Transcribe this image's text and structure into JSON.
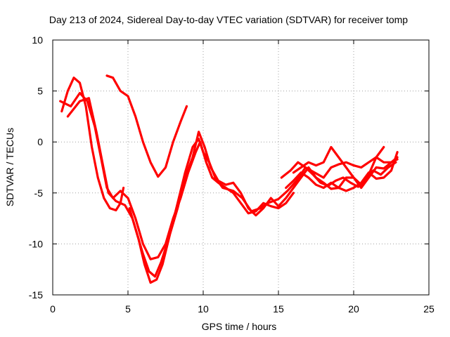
{
  "chart_data": {
    "type": "line",
    "title": "Day 213 of 2024, Sidereal Day-to-day VTEC variation (SDTVAR) for receiver tomp",
    "xlabel": "GPS time / hours",
    "ylabel": "SDTVAR / TECUs",
    "xlim": [
      0,
      25
    ],
    "ylim": [
      -15,
      10
    ],
    "xticks": [
      {
        "value": 0,
        "label": "0"
      },
      {
        "value": 5,
        "label": "5"
      },
      {
        "value": 10,
        "label": "10"
      },
      {
        "value": 15,
        "label": "15"
      },
      {
        "value": 20,
        "label": "20"
      },
      {
        "value": 25,
        "label": "25"
      }
    ],
    "yticks": [
      {
        "value": 10,
        "label": "10"
      },
      {
        "value": 5,
        "label": "5"
      },
      {
        "value": 0,
        "label": "0"
      },
      {
        "value": -5,
        "label": "-5"
      },
      {
        "value": -10,
        "label": "-10"
      },
      {
        "value": -15,
        "label": "-15"
      }
    ],
    "grid": true,
    "legend": "none",
    "color": "#ff0000",
    "series": [
      {
        "points": [
          [
            0.6,
            3.0
          ],
          [
            1.0,
            5.0
          ],
          [
            1.4,
            6.3
          ],
          [
            1.8,
            5.8
          ],
          [
            2.2,
            3.5
          ],
          [
            2.6,
            -0.5
          ],
          [
            3.0,
            -3.5
          ],
          [
            3.4,
            -5.5
          ],
          [
            3.8,
            -6.5
          ],
          [
            4.2,
            -6.7
          ],
          [
            4.5,
            -6.0
          ],
          [
            4.7,
            -4.5
          ]
        ]
      },
      {
        "points": [
          [
            3.6,
            6.5
          ],
          [
            4.0,
            6.3
          ],
          [
            4.5,
            5.0
          ],
          [
            5.0,
            4.5
          ],
          [
            5.5,
            2.5
          ],
          [
            6.0,
            0.0
          ],
          [
            6.5,
            -2.0
          ],
          [
            7.0,
            -3.4
          ],
          [
            7.5,
            -2.5
          ],
          [
            8.0,
            0.0
          ],
          [
            8.5,
            2.0
          ],
          [
            8.9,
            3.5
          ]
        ]
      },
      {
        "points": [
          [
            0.5,
            4.0
          ],
          [
            1.2,
            3.5
          ],
          [
            1.8,
            4.8
          ],
          [
            2.3,
            4.0
          ],
          [
            2.8,
            1.5
          ],
          [
            3.2,
            -1.5
          ],
          [
            3.6,
            -4.5
          ],
          [
            4.0,
            -5.5
          ],
          [
            4.5,
            -4.8
          ],
          [
            5.0,
            -5.5
          ],
          [
            5.5,
            -7.5
          ],
          [
            6.0,
            -10.0
          ],
          [
            6.5,
            -11.5
          ],
          [
            7.0,
            -11.3
          ],
          [
            7.5,
            -10.0
          ],
          [
            8.0,
            -7.5
          ],
          [
            8.5,
            -5.5
          ],
          [
            9.0,
            -3.0
          ],
          [
            9.5,
            -1.0
          ],
          [
            9.8,
            0.0
          ],
          [
            10.2,
            -2.0
          ],
          [
            10.6,
            -3.5
          ],
          [
            11.0,
            -4.0
          ],
          [
            11.5,
            -4.5
          ],
          [
            12.0,
            -5.0
          ],
          [
            12.5,
            -6.0
          ],
          [
            13.0,
            -7.0
          ],
          [
            13.5,
            -6.8
          ],
          [
            14.0,
            -6.0
          ],
          [
            14.5,
            -6.3
          ],
          [
            15.0,
            -6.5
          ],
          [
            15.5,
            -6.0
          ],
          [
            16.0,
            -5.0
          ]
        ]
      },
      {
        "points": [
          [
            1.0,
            2.5
          ],
          [
            1.8,
            4.0
          ],
          [
            2.4,
            4.3
          ],
          [
            2.9,
            1.0
          ],
          [
            3.3,
            -2.0
          ],
          [
            3.7,
            -5.0
          ],
          [
            4.2,
            -5.8
          ],
          [
            4.8,
            -6.2
          ],
          [
            5.3,
            -7.5
          ],
          [
            5.7,
            -9.5
          ],
          [
            6.1,
            -12.0
          ],
          [
            6.5,
            -13.8
          ],
          [
            6.9,
            -13.5
          ],
          [
            7.3,
            -12.0
          ],
          [
            7.8,
            -9.0
          ],
          [
            8.3,
            -6.5
          ],
          [
            8.8,
            -3.5
          ],
          [
            9.3,
            -1.5
          ],
          [
            9.7,
            1.0
          ],
          [
            10.1,
            -0.5
          ],
          [
            10.5,
            -2.5
          ],
          [
            11.0,
            -3.8
          ],
          [
            11.5,
            -4.2
          ],
          [
            12.0,
            -4.0
          ],
          [
            12.5,
            -5.0
          ],
          [
            13.0,
            -6.5
          ],
          [
            13.5,
            -7.2
          ],
          [
            14.0,
            -6.5
          ],
          [
            14.5,
            -5.5
          ],
          [
            15.0,
            -6.3
          ],
          [
            15.5,
            -5.5
          ],
          [
            16.0,
            -4.5
          ],
          [
            16.5,
            -3.5
          ],
          [
            17.0,
            -2.5
          ],
          [
            17.5,
            -3.5
          ],
          [
            18.0,
            -4.0
          ],
          [
            18.5,
            -4.6
          ],
          [
            19.0,
            -4.5
          ],
          [
            19.5,
            -3.5
          ],
          [
            20.0,
            -3.5
          ],
          [
            20.5,
            -4.5
          ],
          [
            21.0,
            -3.5
          ],
          [
            21.5,
            -2.5
          ],
          [
            22.0,
            -2.6
          ],
          [
            22.5,
            -2.0
          ],
          [
            22.9,
            -1.5
          ]
        ]
      },
      {
        "points": [
          [
            5.1,
            -6.5
          ],
          [
            5.6,
            -9.0
          ],
          [
            6.0,
            -11.0
          ],
          [
            6.4,
            -12.7
          ],
          [
            6.8,
            -13.2
          ],
          [
            7.2,
            -11.8
          ],
          [
            7.7,
            -9.5
          ],
          [
            8.3,
            -6.0
          ],
          [
            8.8,
            -3.0
          ],
          [
            9.3,
            -0.5
          ],
          [
            9.7,
            0.3
          ],
          [
            10.0,
            -1.0
          ],
          [
            10.4,
            -2.0
          ],
          [
            10.8,
            -3.5
          ],
          [
            11.3,
            -4.5
          ],
          [
            12.0,
            -4.8
          ],
          [
            12.6,
            -5.5
          ],
          [
            13.2,
            -6.8
          ],
          [
            13.8,
            -6.5
          ],
          [
            14.3,
            -6.0
          ],
          [
            15.0,
            -5.6
          ],
          [
            15.6,
            -4.8
          ],
          [
            16.2,
            -3.8
          ],
          [
            16.8,
            -2.5
          ],
          [
            17.4,
            -3.0
          ],
          [
            18.0,
            -3.5
          ],
          [
            18.5,
            -2.5
          ],
          [
            19.0,
            -2.2
          ],
          [
            19.5,
            -2.0
          ],
          [
            20.0,
            -2.3
          ],
          [
            20.5,
            -2.5
          ],
          [
            21.0,
            -2.0
          ],
          [
            21.5,
            -1.5
          ],
          [
            22.0,
            -2.0
          ],
          [
            22.5,
            -2.0
          ],
          [
            22.9,
            -1.7
          ]
        ]
      },
      {
        "points": [
          [
            15.2,
            -3.5
          ],
          [
            15.8,
            -2.8
          ],
          [
            16.3,
            -2.0
          ],
          [
            16.8,
            -2.5
          ],
          [
            17.3,
            -3.2
          ],
          [
            17.8,
            -4.0
          ],
          [
            18.3,
            -4.3
          ],
          [
            18.8,
            -3.8
          ],
          [
            19.3,
            -3.5
          ],
          [
            19.8,
            -4.0
          ],
          [
            20.3,
            -4.4
          ],
          [
            20.8,
            -3.5
          ],
          [
            21.3,
            -2.8
          ],
          [
            21.8,
            -3.2
          ],
          [
            22.3,
            -2.5
          ],
          [
            22.8,
            -2.0
          ]
        ]
      },
      {
        "points": [
          [
            15.5,
            -4.5
          ],
          [
            16.0,
            -3.8
          ],
          [
            16.5,
            -3.0
          ],
          [
            17.0,
            -3.5
          ],
          [
            17.5,
            -4.2
          ],
          [
            18.0,
            -4.5
          ],
          [
            18.5,
            -4.0
          ],
          [
            19.0,
            -4.5
          ],
          [
            19.5,
            -4.8
          ],
          [
            20.0,
            -4.5
          ],
          [
            20.5,
            -4.0
          ],
          [
            21.0,
            -3.0
          ],
          [
            21.5,
            -3.6
          ],
          [
            22.0,
            -3.5
          ],
          [
            22.5,
            -2.8
          ],
          [
            22.9,
            -1.0
          ]
        ]
      },
      {
        "points": [
          [
            16.0,
            -3.0
          ],
          [
            16.5,
            -2.5
          ],
          [
            17.0,
            -2.0
          ],
          [
            17.5,
            -2.3
          ],
          [
            18.0,
            -2.0
          ],
          [
            18.5,
            -0.5
          ],
          [
            19.0,
            -1.5
          ],
          [
            19.5,
            -2.5
          ],
          [
            20.0,
            -3.5
          ],
          [
            20.5,
            -4.2
          ],
          [
            21.0,
            -3.2
          ],
          [
            21.5,
            -1.5
          ],
          [
            22.0,
            -0.5
          ]
        ]
      }
    ]
  }
}
